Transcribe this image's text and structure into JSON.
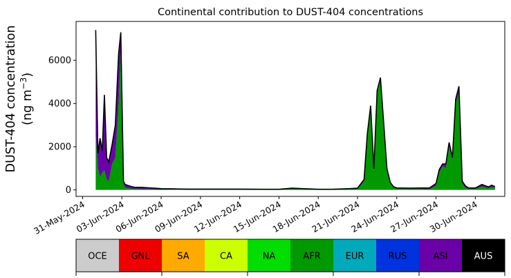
{
  "chart_data": {
    "type": "area",
    "stacked": true,
    "title": "Continental contribution to DUST-404 concentrations",
    "ylabel_line1": "DUST-404 concentration",
    "ylabel_line2": "(ng m",
    "ylabel_sup": "−3",
    "ylabel_close": ")",
    "xlabel": "",
    "ylim": [
      -300,
      7800
    ],
    "xlim": [
      "2024-05-30T12:00",
      "2024-07-02T06:00"
    ],
    "yticks": [
      0,
      2000,
      4000,
      6000
    ],
    "ytick_labels": [
      "0",
      "2000",
      "4000",
      "6000"
    ],
    "xticks": [
      "2024-05-31",
      "2024-06-03",
      "2024-06-06",
      "2024-06-09",
      "2024-06-12",
      "2024-06-15",
      "2024-06-18",
      "2024-06-21",
      "2024-06-24",
      "2024-06-27",
      "2024-06-30"
    ],
    "xtick_labels": [
      "31-May-2024",
      "03-Jun-2024",
      "06-Jun-2024",
      "09-Jun-2024",
      "12-Jun-2024",
      "15-Jun-2024",
      "18-Jun-2024",
      "21-Jun-2024",
      "24-Jun-2024",
      "27-Jun-2024",
      "30-Jun-2024"
    ],
    "grid": false,
    "x": [
      "2024-06-01T00:00",
      "2024-06-01T04:00",
      "2024-06-01T08:00",
      "2024-06-01T12:00",
      "2024-06-01T16:00",
      "2024-06-01T20:00",
      "2024-06-02T00:00",
      "2024-06-02T06:00",
      "2024-06-02T12:00",
      "2024-06-02T18:00",
      "2024-06-02T22:00",
      "2024-06-03T00:00",
      "2024-06-03T03:00",
      "2024-06-03T06:00",
      "2024-06-03T12:00",
      "2024-06-03T18:00",
      "2024-06-04T00:00",
      "2024-06-04T12:00",
      "2024-06-05T00:00",
      "2024-06-05T12:00",
      "2024-06-06T00:00",
      "2024-06-07T00:00",
      "2024-06-08T00:00",
      "2024-06-10T00:00",
      "2024-06-12T00:00",
      "2024-06-14T00:00",
      "2024-06-15T00:00",
      "2024-06-16T00:00",
      "2024-06-18T00:00",
      "2024-06-19T00:00",
      "2024-06-20T00:00",
      "2024-06-21T00:00",
      "2024-06-21T12:00",
      "2024-06-21T18:00",
      "2024-06-22T00:00",
      "2024-06-22T06:00",
      "2024-06-22T12:00",
      "2024-06-22T18:00",
      "2024-06-23T00:00",
      "2024-06-23T06:00",
      "2024-06-23T12:00",
      "2024-06-23T18:00",
      "2024-06-24T00:00",
      "2024-06-25T00:00",
      "2024-06-26T00:00",
      "2024-06-26T12:00",
      "2024-06-27T00:00",
      "2024-06-27T06:00",
      "2024-06-27T12:00",
      "2024-06-27T18:00",
      "2024-06-28T00:00",
      "2024-06-28T06:00",
      "2024-06-28T12:00",
      "2024-06-28T18:00",
      "2024-06-29T00:00",
      "2024-06-29T06:00",
      "2024-06-29T12:00",
      "2024-06-30T00:00",
      "2024-06-30T12:00",
      "2024-07-01T00:00",
      "2024-07-01T06:00",
      "2024-07-01T12:00"
    ],
    "series": [
      {
        "name": "OCE",
        "color": "#cccccc",
        "values": [
          0,
          0,
          0,
          0,
          0,
          0,
          0,
          0,
          0,
          0,
          0,
          0,
          0,
          0,
          0,
          0,
          0,
          0,
          0,
          0,
          0,
          0,
          0,
          0,
          0,
          0,
          0,
          0,
          0,
          0,
          0,
          0,
          0,
          0,
          0,
          0,
          0,
          0,
          0,
          0,
          0,
          0,
          0,
          0,
          0,
          0,
          0,
          0,
          0,
          0,
          0,
          0,
          0,
          0,
          0,
          0,
          0,
          0,
          0,
          0,
          0,
          0
        ]
      },
      {
        "name": "GNL",
        "color": "#ee0000",
        "values": [
          0,
          0,
          0,
          0,
          0,
          0,
          0,
          0,
          0,
          0,
          0,
          0,
          0,
          0,
          0,
          0,
          0,
          0,
          0,
          0,
          0,
          0,
          0,
          0,
          0,
          0,
          0,
          0,
          0,
          0,
          0,
          0,
          0,
          0,
          0,
          0,
          0,
          0,
          0,
          0,
          0,
          0,
          0,
          0,
          0,
          0,
          0,
          0,
          0,
          0,
          0,
          0,
          0,
          0,
          0,
          0,
          0,
          0,
          0,
          0,
          0,
          0
        ]
      },
      {
        "name": "SA",
        "color": "#ffaa00",
        "values": [
          0,
          0,
          0,
          0,
          0,
          0,
          0,
          0,
          0,
          0,
          0,
          0,
          0,
          0,
          0,
          0,
          0,
          0,
          0,
          0,
          0,
          0,
          0,
          0,
          0,
          0,
          0,
          0,
          0,
          0,
          0,
          0,
          0,
          0,
          0,
          0,
          0,
          0,
          0,
          0,
          0,
          0,
          0,
          0,
          0,
          0,
          0,
          0,
          0,
          0,
          0,
          0,
          0,
          0,
          0,
          0,
          0,
          0,
          0,
          0,
          0,
          0
        ]
      },
      {
        "name": "CA",
        "color": "#ccff00",
        "values": [
          0,
          0,
          0,
          0,
          0,
          0,
          0,
          0,
          0,
          0,
          0,
          0,
          0,
          0,
          0,
          0,
          0,
          0,
          0,
          0,
          0,
          0,
          0,
          0,
          0,
          0,
          0,
          0,
          0,
          0,
          0,
          0,
          0,
          0,
          0,
          0,
          0,
          0,
          0,
          0,
          0,
          0,
          0,
          0,
          0,
          0,
          0,
          0,
          0,
          0,
          0,
          0,
          0,
          0,
          0,
          0,
          0,
          0,
          0,
          0,
          0,
          0
        ]
      },
      {
        "name": "NA",
        "color": "#00dd00",
        "values": [
          0,
          0,
          0,
          0,
          0,
          0,
          0,
          0,
          0,
          0,
          0,
          0,
          0,
          0,
          0,
          0,
          0,
          0,
          0,
          0,
          0,
          0,
          0,
          0,
          0,
          0,
          0,
          0,
          0,
          0,
          0,
          0,
          0,
          0,
          0,
          0,
          0,
          0,
          0,
          0,
          0,
          0,
          0,
          0,
          0,
          0,
          0,
          0,
          0,
          0,
          0,
          0,
          0,
          0,
          0,
          0,
          0,
          0,
          0,
          0,
          0,
          0
        ]
      },
      {
        "name": "AFR",
        "color": "#009900",
        "values": [
          2500,
          1000,
          600,
          800,
          900,
          500,
          400,
          1200,
          1500,
          4000,
          6500,
          3800,
          300,
          100,
          80,
          50,
          40,
          40,
          30,
          20,
          20,
          10,
          10,
          10,
          10,
          10,
          10,
          40,
          10,
          10,
          20,
          40,
          400,
          2500,
          3800,
          900,
          4500,
          5100,
          3000,
          900,
          300,
          100,
          50,
          40,
          40,
          30,
          200,
          800,
          1100,
          1000,
          2000,
          1400,
          4000,
          4500,
          300,
          80,
          50,
          40,
          150,
          80,
          120,
          90
        ]
      },
      {
        "name": "EUR",
        "color": "#00aabb",
        "values": [
          0,
          0,
          0,
          0,
          0,
          0,
          0,
          0,
          0,
          0,
          0,
          0,
          0,
          0,
          0,
          0,
          0,
          0,
          0,
          0,
          0,
          0,
          0,
          0,
          0,
          0,
          0,
          0,
          0,
          0,
          0,
          0,
          0,
          0,
          0,
          0,
          0,
          0,
          0,
          0,
          0,
          0,
          0,
          0,
          0,
          0,
          0,
          0,
          0,
          0,
          0,
          0,
          0,
          0,
          0,
          0,
          0,
          0,
          0,
          0,
          0,
          0
        ]
      },
      {
        "name": "RUS",
        "color": "#0033dd",
        "values": [
          0,
          0,
          0,
          0,
          0,
          0,
          0,
          0,
          0,
          0,
          0,
          0,
          0,
          0,
          0,
          0,
          0,
          0,
          0,
          0,
          0,
          0,
          0,
          0,
          0,
          0,
          0,
          0,
          0,
          0,
          0,
          0,
          0,
          0,
          0,
          0,
          0,
          0,
          0,
          0,
          0,
          0,
          0,
          0,
          0,
          0,
          0,
          0,
          0,
          0,
          0,
          0,
          0,
          0,
          0,
          0,
          0,
          0,
          0,
          0,
          0,
          0
        ]
      },
      {
        "name": "ASI",
        "color": "#6a00a8",
        "values": [
          4900,
          700,
          1800,
          1000,
          3500,
          1000,
          900,
          900,
          1500,
          2300,
          800,
          600,
          100,
          150,
          120,
          100,
          80,
          80,
          70,
          60,
          40,
          40,
          30,
          30,
          30,
          20,
          20,
          40,
          20,
          20,
          30,
          40,
          80,
          100,
          100,
          80,
          100,
          100,
          100,
          80,
          50,
          50,
          40,
          40,
          50,
          60,
          100,
          150,
          100,
          200,
          200,
          100,
          200,
          300,
          100,
          100,
          40,
          50,
          100,
          60,
          100,
          60
        ]
      },
      {
        "name": "AUS",
        "color": "#000000",
        "values": [
          0,
          0,
          0,
          0,
          0,
          0,
          0,
          0,
          0,
          0,
          0,
          0,
          0,
          0,
          0,
          0,
          0,
          0,
          0,
          0,
          0,
          0,
          0,
          0,
          0,
          0,
          0,
          0,
          0,
          0,
          0,
          0,
          0,
          0,
          0,
          0,
          0,
          0,
          0,
          0,
          0,
          0,
          0,
          0,
          0,
          0,
          0,
          0,
          0,
          0,
          0,
          0,
          0,
          0,
          0,
          0,
          0,
          0,
          0,
          0,
          0,
          0
        ]
      }
    ],
    "total_line_color": "#000000",
    "legend_position": "bottom",
    "legend_labels": [
      "OCE",
      "GNL",
      "SA",
      "CA",
      "NA",
      "AFR",
      "EUR",
      "RUS",
      "ASI",
      "AUS"
    ],
    "legend_text_colors": [
      "#000000",
      "#000000",
      "#000000",
      "#000000",
      "#000000",
      "#000000",
      "#000000",
      "#000000",
      "#000000",
      "#ffffff"
    ]
  }
}
